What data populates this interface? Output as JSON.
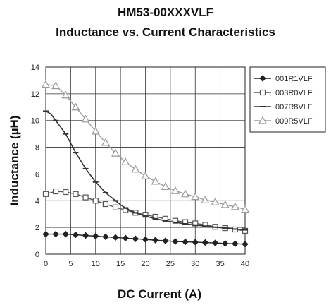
{
  "chart_data": {
    "type": "line",
    "title": "HM53-00XXXVLF",
    "subtitle": "Inductance vs. Current Characteristics",
    "xlabel": "DC Current (A)",
    "ylabel": "Inductance (µH)",
    "xlim": [
      0,
      40
    ],
    "ylim": [
      0,
      14
    ],
    "xticks": [
      "0",
      "5",
      "10",
      "15",
      "20",
      "25",
      "30",
      "35",
      "40"
    ],
    "yticks": [
      "0",
      "2",
      "4",
      "6",
      "8",
      "10",
      "12",
      "14"
    ],
    "grid": true,
    "legend_position": "right",
    "series": [
      {
        "name": "001R1VLF",
        "color": "#222222",
        "marker": "diamond",
        "x": [
          0,
          2,
          4,
          6,
          8,
          10,
          12,
          14,
          16,
          18,
          20,
          22,
          24,
          26,
          28,
          30,
          32,
          34,
          36,
          38,
          40
        ],
        "y": [
          1.5,
          1.5,
          1.5,
          1.45,
          1.4,
          1.35,
          1.3,
          1.25,
          1.2,
          1.15,
          1.1,
          1.05,
          1.0,
          0.95,
          0.92,
          0.9,
          0.87,
          0.84,
          0.8,
          0.78,
          0.75
        ]
      },
      {
        "name": "003R0VLF",
        "color": "#555555",
        "marker": "square",
        "x": [
          0,
          2,
          4,
          6,
          8,
          10,
          12,
          14,
          16,
          18,
          20,
          22,
          24,
          26,
          28,
          30,
          32,
          34,
          36,
          38,
          40
        ],
        "y": [
          4.5,
          4.7,
          4.65,
          4.5,
          4.25,
          4.0,
          3.75,
          3.5,
          3.3,
          3.1,
          2.95,
          2.8,
          2.65,
          2.5,
          2.4,
          2.3,
          2.2,
          2.05,
          1.95,
          1.85,
          1.75
        ]
      },
      {
        "name": "007R8VLF",
        "color": "#333333",
        "marker": "dash",
        "x": [
          0,
          1,
          2,
          3,
          4,
          5,
          6,
          7,
          8,
          9,
          10,
          11,
          12,
          13,
          14,
          15,
          16,
          18,
          20,
          22,
          24,
          26,
          28,
          30,
          32,
          34,
          36,
          38,
          40
        ],
        "y": [
          10.7,
          10.5,
          10.0,
          9.5,
          9.0,
          8.3,
          7.6,
          7.0,
          6.4,
          5.9,
          5.4,
          5.0,
          4.6,
          4.3,
          4.0,
          3.7,
          3.45,
          3.1,
          2.85,
          2.65,
          2.5,
          2.38,
          2.27,
          2.18,
          2.1,
          2.02,
          1.95,
          1.88,
          1.82
        ]
      },
      {
        "name": "009R5VLF",
        "color": "#9a9a9a",
        "marker": "triangle",
        "x": [
          0,
          2,
          4,
          6,
          8,
          10,
          12,
          14,
          16,
          18,
          20,
          22,
          24,
          26,
          28,
          30,
          32,
          34,
          36,
          38,
          40
        ],
        "y": [
          12.7,
          12.6,
          11.9,
          11.0,
          10.1,
          9.2,
          8.35,
          7.55,
          6.9,
          6.35,
          5.85,
          5.45,
          5.05,
          4.75,
          4.5,
          4.3,
          4.05,
          3.9,
          3.7,
          3.55,
          3.35
        ]
      }
    ]
  }
}
